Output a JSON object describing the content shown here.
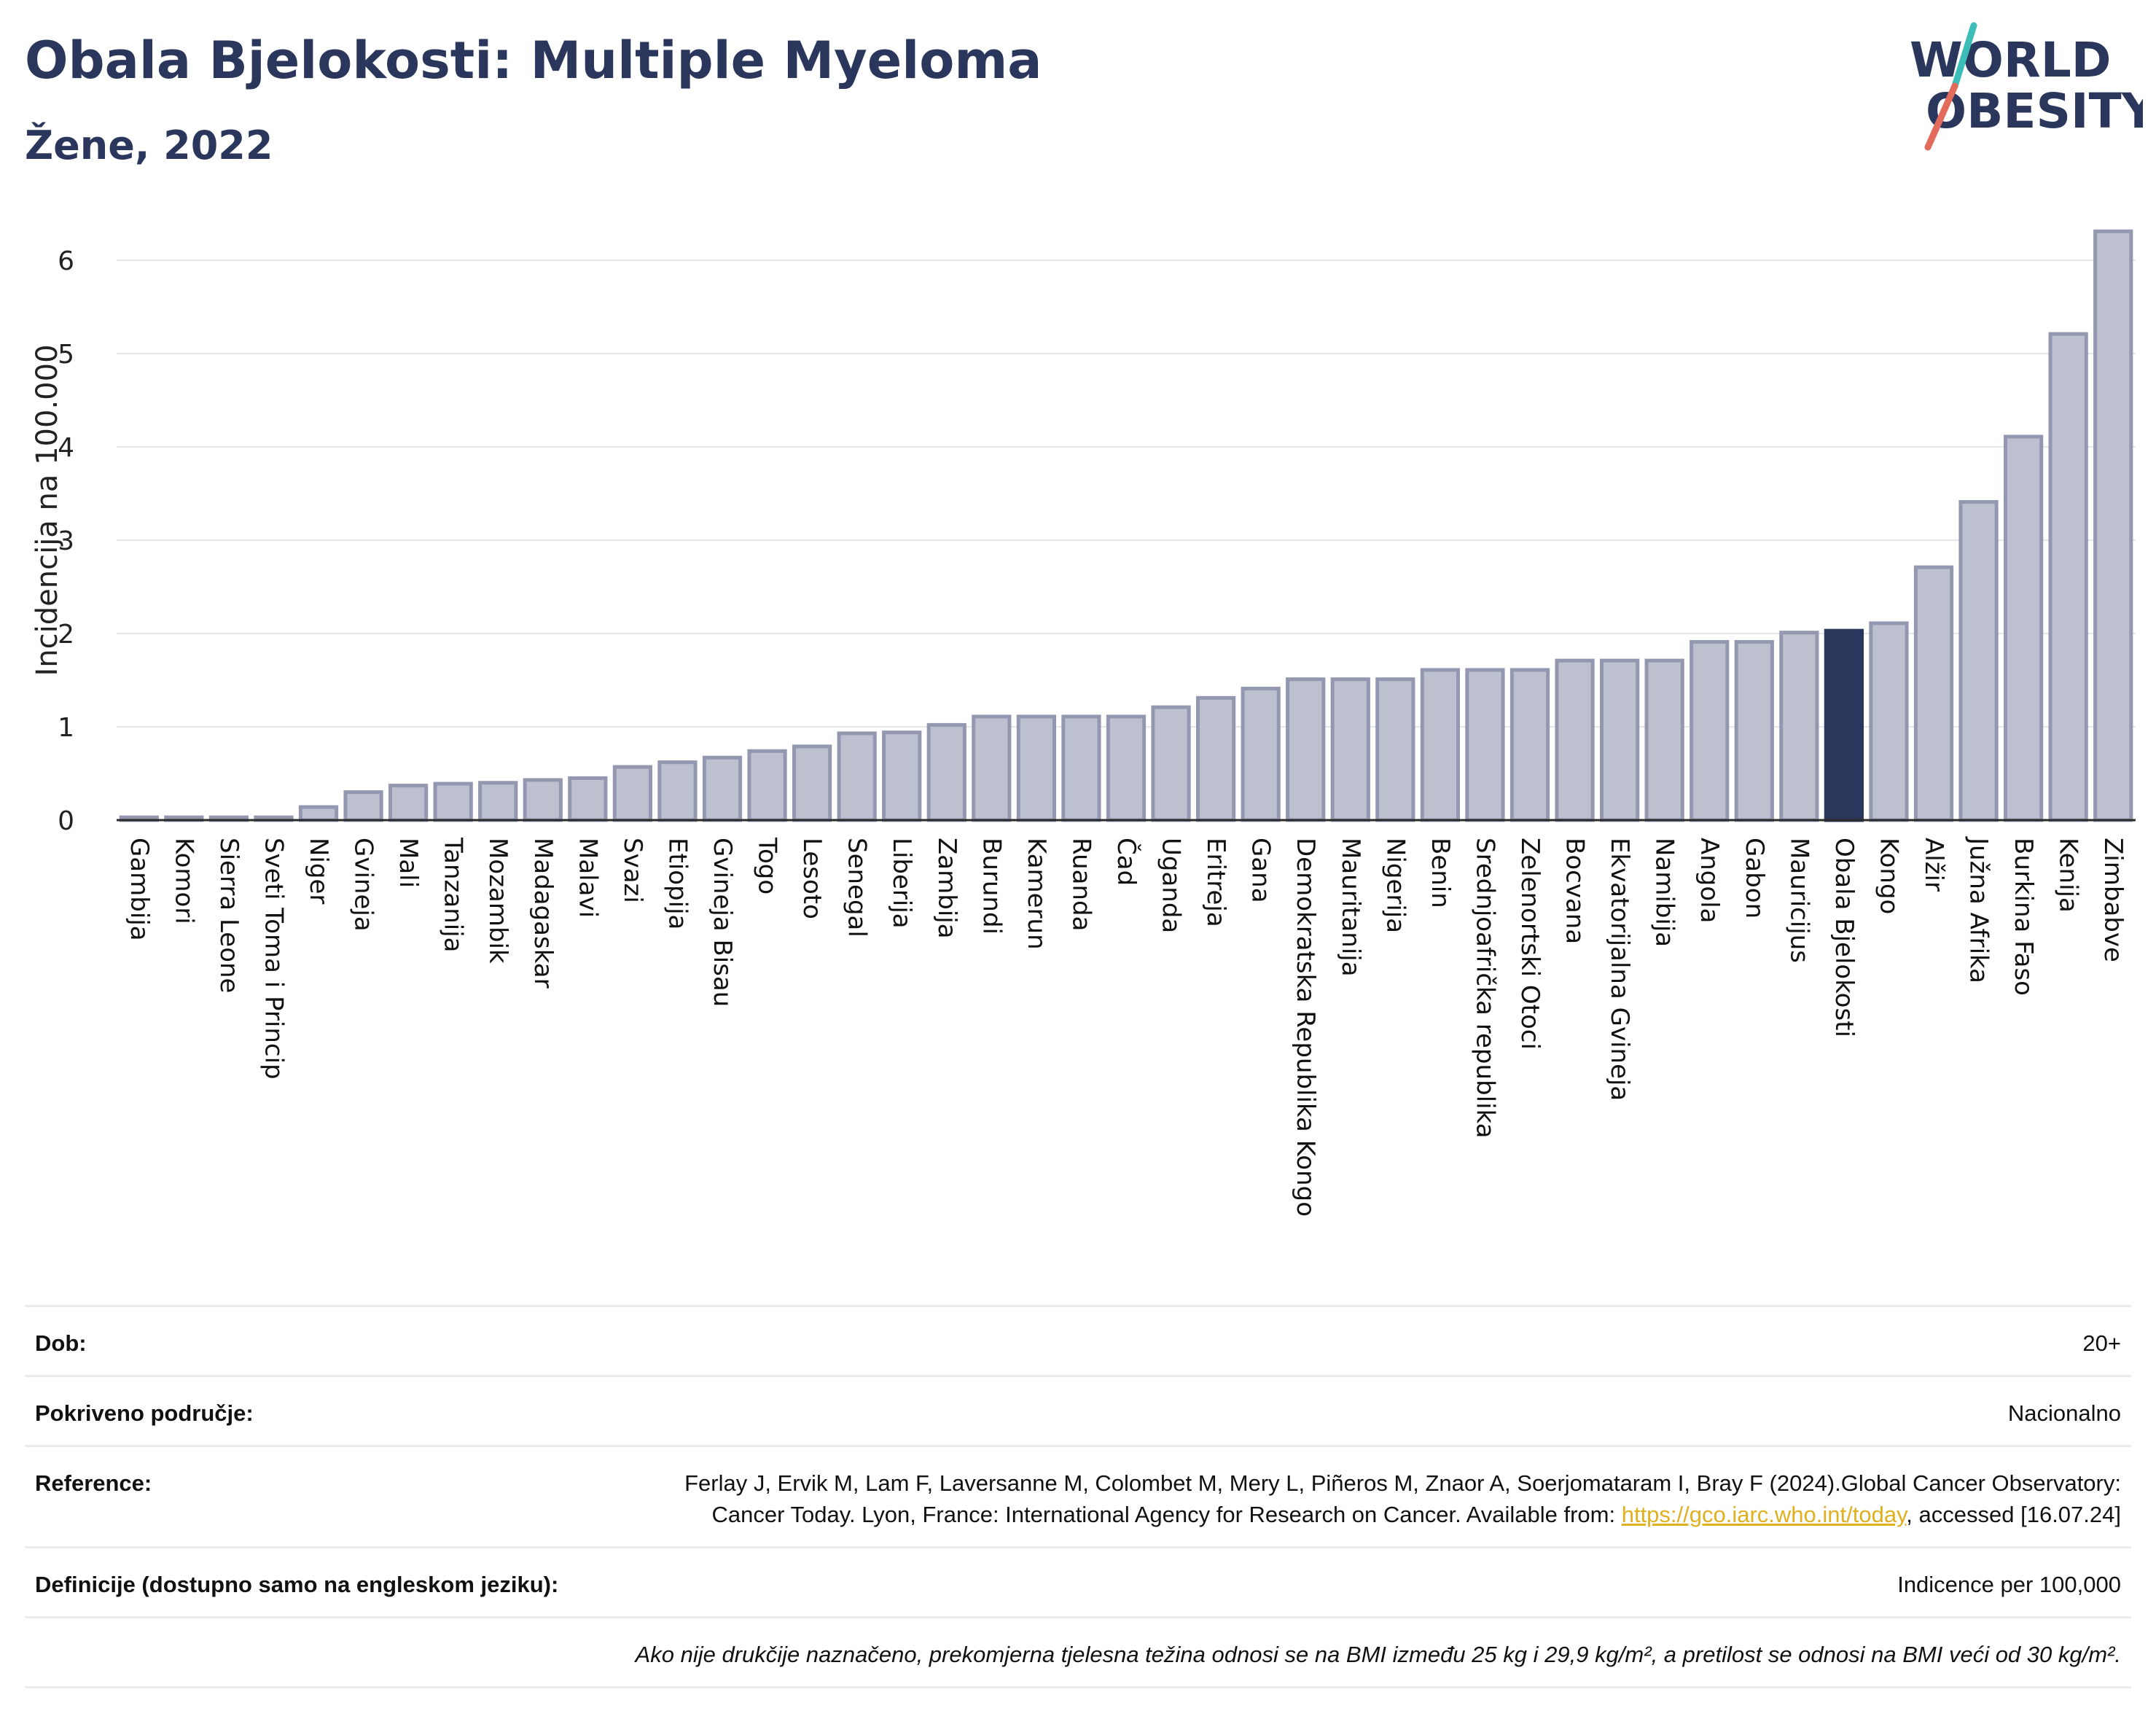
{
  "header": {
    "title": "Obala Bjelokosti: Multiple Myeloma",
    "subtitle": "Žene, 2022"
  },
  "logo": {
    "line1": "WORLD",
    "line2": "OBESITY"
  },
  "colors": {
    "bar": "#bcc0cf",
    "bar_edge": "#9398b0",
    "highlight": "#2b365c",
    "title": "#2b365c"
  },
  "chart_data": {
    "type": "bar",
    "title": "Obala Bjelokosti: Multiple Myeloma",
    "subtitle": "Žene, 2022",
    "xlabel": "",
    "ylabel": "Incidencija na 100.000",
    "ylim": [
      0,
      6.5
    ],
    "yticks": [
      0,
      1,
      2,
      3,
      4,
      5,
      6
    ],
    "grid": true,
    "highlight": "Obala Bjelokosti",
    "categories": [
      "Gambija",
      "Komori",
      "Sierra Leone",
      "Sveti Toma i Princip",
      "Niger",
      "Gvineja",
      "Mali",
      "Tanzanija",
      "Mozambik",
      "Madagaskar",
      "Malavi",
      "Svazi",
      "Etiopija",
      "Gvineja Bisau",
      "Togo",
      "Lesoto",
      "Senegal",
      "Liberija",
      "Zambija",
      "Burundi",
      "Kamerun",
      "Ruanda",
      "Čad",
      "Uganda",
      "Eritreja",
      "Gana",
      "Demokratska Republika Kongo",
      "Mauritanija",
      "Nigerija",
      "Benin",
      "Srednjoafrička republika",
      "Zelenortski Otoci",
      "Bocvana",
      "Ekvatorijalna Gvineja",
      "Namibija",
      "Angola",
      "Gabon",
      "Mauricijus",
      "Obala Bjelokosti",
      "Kongo",
      "Alžir",
      "Južna Afrika",
      "Burkina Faso",
      "Kenija",
      "Zimbabve"
    ],
    "values": [
      0.03,
      0.03,
      0.03,
      0.03,
      0.14,
      0.3,
      0.37,
      0.39,
      0.4,
      0.43,
      0.45,
      0.57,
      0.62,
      0.67,
      0.74,
      0.79,
      0.93,
      0.94,
      1.02,
      1.11,
      1.11,
      1.11,
      1.11,
      1.21,
      1.31,
      1.41,
      1.51,
      1.51,
      1.51,
      1.61,
      1.61,
      1.61,
      1.71,
      1.71,
      1.71,
      1.91,
      1.91,
      2.01,
      2.03,
      2.11,
      2.71,
      3.41,
      4.11,
      5.21,
      6.31
    ]
  },
  "info": {
    "age_label": "Dob:",
    "age_value": "20+",
    "coverage_label": "Pokriveno područje:",
    "coverage_value": "Nacionalno",
    "reference_label": "Reference:",
    "reference_text_1": "Ferlay J, Ervik M, Lam F, Laversanne M, Colombet M, Mery L, Piñeros M, Znaor A, Soerjomataram I, Bray F (2024).Global Cancer Observatory: Cancer Today. Lyon, France: International Agency for Research on Cancer. Available from: ",
    "reference_link": "https://gco.iarc.who.int/today",
    "reference_text_2": ", accessed [16.07.24]",
    "definitions_label": "Definicije (dostupno samo na engleskom jeziku):",
    "definitions_value": "Indicence per 100,000",
    "note": "Ako nije drukčije naznačeno, prekomjerna tjelesna težina odnosi se na BMI između 25 kg i 29,9 kg/m², a pretilost se odnosi na BMI veći od 30 kg/m²."
  }
}
